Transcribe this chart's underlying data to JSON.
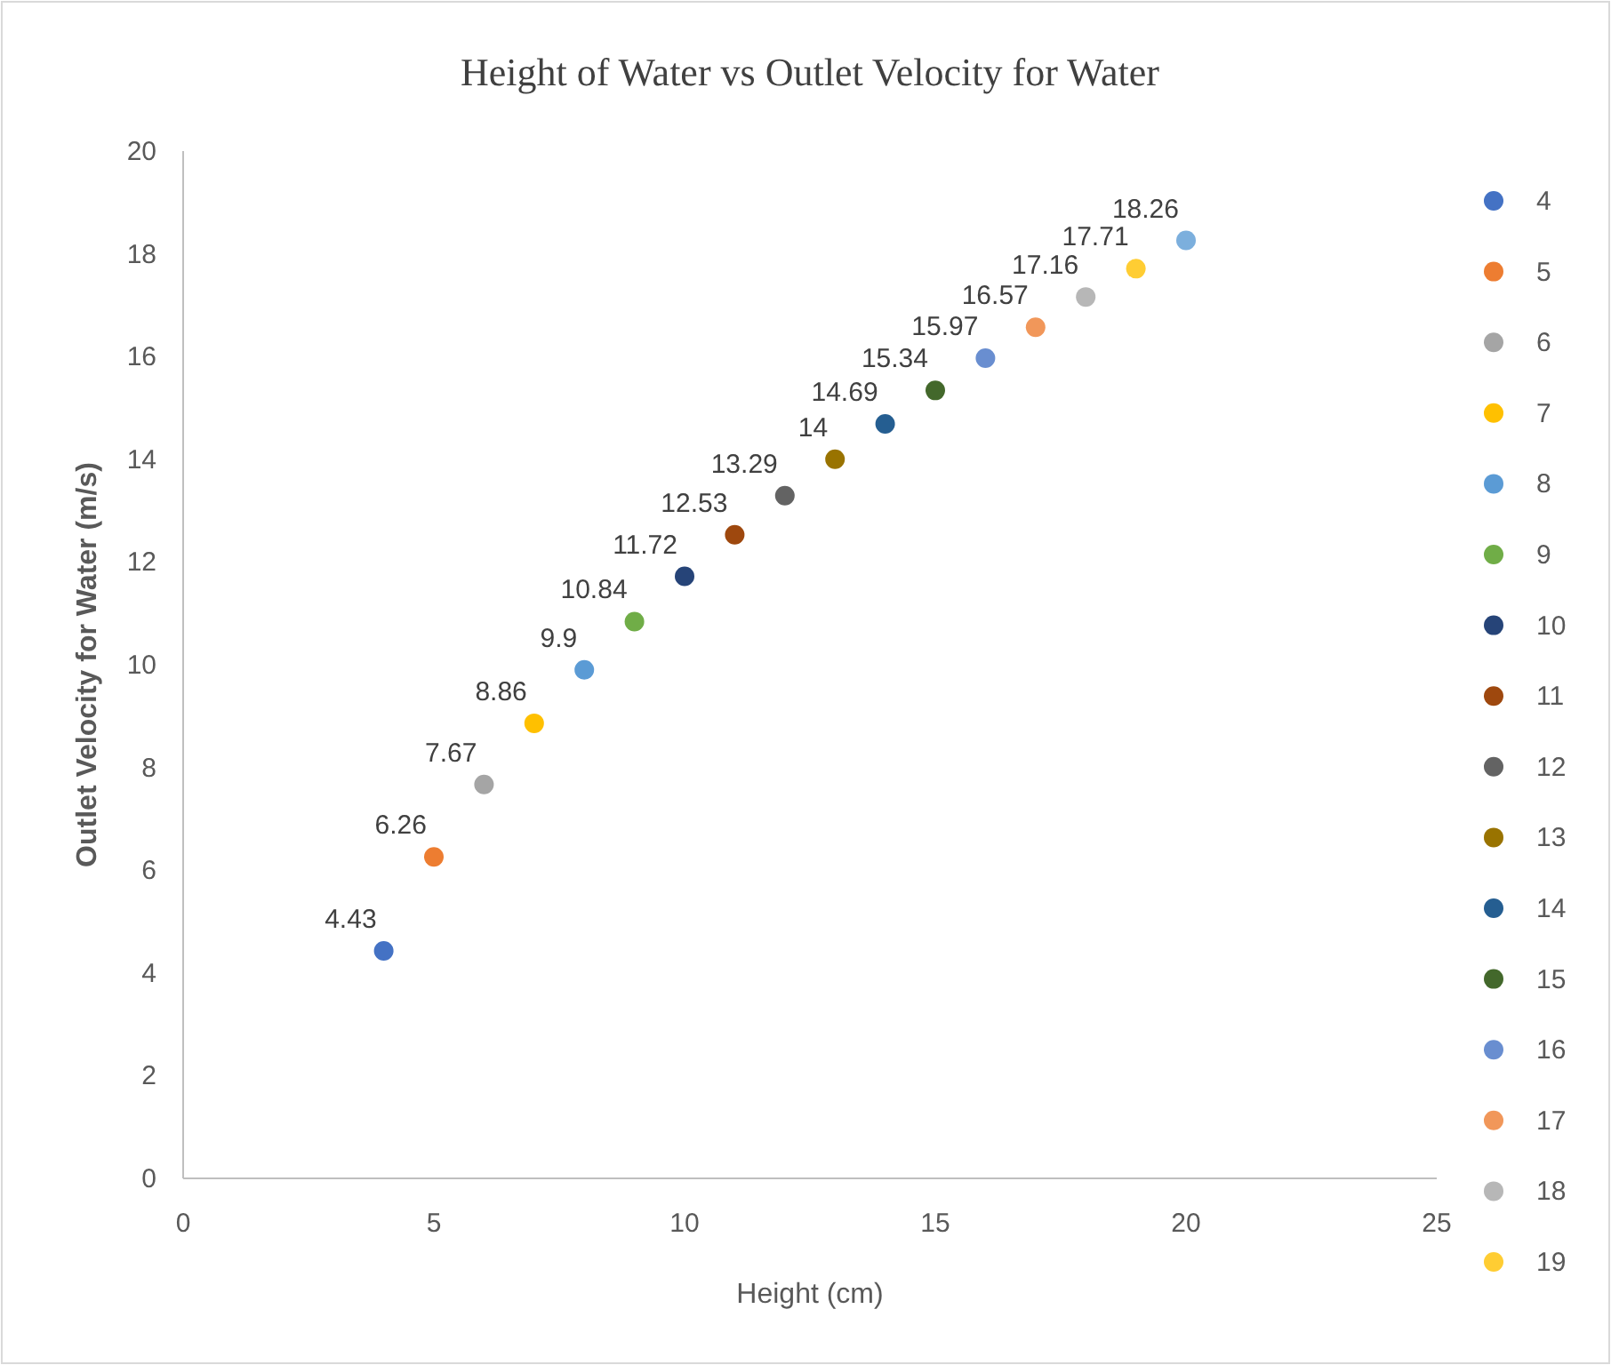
{
  "chart_data": {
    "type": "scatter",
    "title": "Height of Water vs Outlet Velocity for Water",
    "xlabel": "Height (cm)",
    "ylabel": "Outlet Velocity for Water (m/s)",
    "xlim": [
      0,
      25
    ],
    "xticks": [
      0,
      5,
      10,
      15,
      20,
      25
    ],
    "ylim": [
      0,
      20
    ],
    "yticks": [
      0,
      2,
      4,
      6,
      8,
      10,
      12,
      14,
      16,
      18,
      20
    ],
    "grid": false,
    "legend": "right",
    "marker": "circle",
    "data_labels": true,
    "series": [
      {
        "name": "4",
        "color": "#4472c4",
        "x": [
          4
        ],
        "values": [
          4.43
        ]
      },
      {
        "name": "5",
        "color": "#ed7d31",
        "x": [
          5
        ],
        "values": [
          6.26
        ]
      },
      {
        "name": "6",
        "color": "#a5a5a5",
        "x": [
          6
        ],
        "values": [
          7.67
        ]
      },
      {
        "name": "7",
        "color": "#ffc000",
        "x": [
          7
        ],
        "values": [
          8.86
        ]
      },
      {
        "name": "8",
        "color": "#5b9bd5",
        "x": [
          8
        ],
        "values": [
          9.9
        ]
      },
      {
        "name": "9",
        "color": "#70ad47",
        "x": [
          9
        ],
        "values": [
          10.84
        ]
      },
      {
        "name": "10",
        "color": "#264478",
        "x": [
          10
        ],
        "values": [
          11.72
        ]
      },
      {
        "name": "11",
        "color": "#9e480e",
        "x": [
          11
        ],
        "values": [
          12.53
        ]
      },
      {
        "name": "12",
        "color": "#636363",
        "x": [
          12
        ],
        "values": [
          13.29
        ]
      },
      {
        "name": "13",
        "color": "#997300",
        "x": [
          13
        ],
        "values": [
          14
        ]
      },
      {
        "name": "14",
        "color": "#255e91",
        "x": [
          14
        ],
        "values": [
          14.69
        ]
      },
      {
        "name": "15",
        "color": "#43682b",
        "x": [
          15
        ],
        "values": [
          15.34
        ]
      },
      {
        "name": "16",
        "color": "#698ed0",
        "x": [
          16
        ],
        "values": [
          15.97
        ]
      },
      {
        "name": "17",
        "color": "#f1975a",
        "x": [
          17
        ],
        "values": [
          16.57
        ]
      },
      {
        "name": "18",
        "color": "#b7b7b7",
        "x": [
          18
        ],
        "values": [
          17.16
        ]
      },
      {
        "name": "19",
        "color": "#ffcd33",
        "x": [
          19
        ],
        "values": [
          17.71
        ]
      },
      {
        "color": "#7cafdd",
        "x": [
          20
        ],
        "values": [
          18.26
        ]
      }
    ]
  }
}
